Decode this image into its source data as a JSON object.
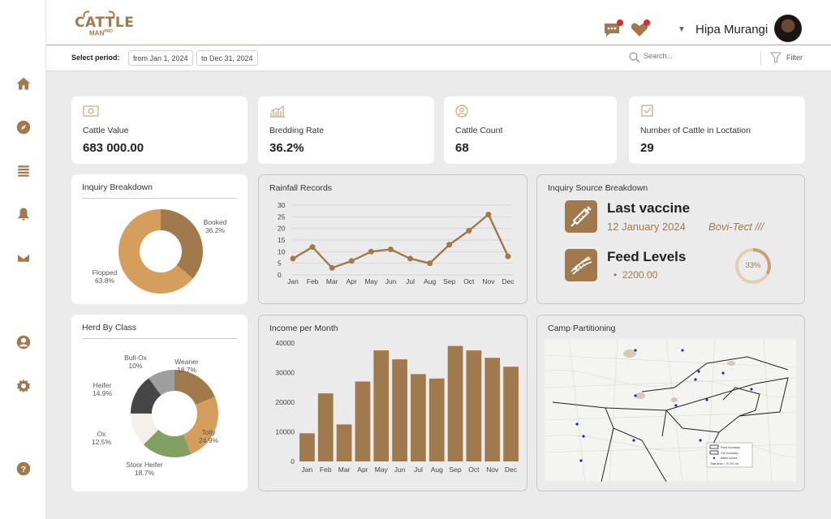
{
  "app": {
    "logo_text": "CATTLE",
    "logo_sub": "MAN",
    "logo_sup": "PRO"
  },
  "header": {
    "user_name": "Hipa Murangi",
    "icons": [
      "chat-icon",
      "heart-icon",
      "chevron-down-icon",
      "avatar"
    ]
  },
  "sidebar": {
    "items": [
      "home-icon",
      "compass-icon",
      "list-icon",
      "bell-icon",
      "mail-icon",
      "user-icon",
      "gear-icon",
      "help-icon"
    ]
  },
  "filterbar": {
    "period_label": "Select period:",
    "from": "from Jan 1, 2024",
    "to": "to Dec 31, 2024",
    "search_placeholder": "Search...",
    "filter_label": "Filter"
  },
  "stats": [
    {
      "icon": "money-icon",
      "label": "Cattle Value",
      "value": "683 000.00"
    },
    {
      "icon": "bar-chart-icon",
      "label": "Bredding Rate",
      "value": "36.2%"
    },
    {
      "icon": "user-circle-icon",
      "label": "Cattle Count",
      "value": "68"
    },
    {
      "icon": "checkbox-icon",
      "label": "Number of Cattle in Loctation",
      "value": "29"
    }
  ],
  "colors": {
    "brand": "#a07a4c",
    "brand_light": "#d59e5d",
    "accent_red": "#e0282e",
    "dark_slice": "#464646",
    "grey_slice": "#9e9e9e",
    "green_slice": "#82a062",
    "cream_slice": "#f4efe8"
  },
  "inquiry_breakdown": {
    "title": "Inquiry Breakdown",
    "chart_data": {
      "type": "pie",
      "slices": [
        {
          "name": "Booked",
          "value": 36.2,
          "label": "36.2%",
          "color": "#a07a4c"
        },
        {
          "name": "Flopped",
          "value": 63.8,
          "label": "63.8%",
          "color": "#d59e5d"
        }
      ]
    }
  },
  "rainfall": {
    "title": "Rainfall Records",
    "chart_data": {
      "type": "line",
      "categories": [
        "Jan",
        "Feb",
        "Mar",
        "Apr",
        "May",
        "Jun",
        "Jul",
        "Aug",
        "Sep",
        "Oct",
        "Nov",
        "Dec"
      ],
      "values": [
        7,
        12,
        3,
        6,
        10,
        11,
        7,
        5,
        13,
        19,
        26,
        8
      ],
      "yticks": [
        "0",
        "5",
        "10",
        "15",
        "20",
        "25",
        "30"
      ],
      "ylim": [
        0,
        30
      ],
      "grid": true
    }
  },
  "inquiry_source": {
    "title": "Inquiry Source Breakdown",
    "vaccine_icon": "syringe-icon",
    "vaccine_title": "Last vaccine",
    "vaccine_date": "12 January 2024",
    "vaccine_brand": "Bovi-Tect ///",
    "feed_icon": "feed-icon",
    "feed_title": "Feed Levels",
    "feed_amount": "2200.00",
    "feed_percent": 33,
    "feed_percent_label": "33%"
  },
  "herd": {
    "title": "Herd By Class",
    "chart_data": {
      "type": "pie",
      "slices": [
        {
          "name": "Weaner",
          "value": 18.7,
          "label": "18.7%",
          "color": "#a07a4c"
        },
        {
          "name": "Tolly",
          "value": 24.9,
          "label": "24.9%",
          "color": "#d59e5d"
        },
        {
          "name": "Stoor Heifer",
          "value": 18.7,
          "label": "18.7%",
          "color": "#82a062"
        },
        {
          "name": "Ox",
          "value": 12.5,
          "label": "12.5%",
          "color": "#f4efe8"
        },
        {
          "name": "Heifer",
          "value": 14.9,
          "label": "14.9%",
          "color": "#464646"
        },
        {
          "name": "Bull-Ox",
          "value": 10,
          "label": "10%",
          "color": "#9e9e9e"
        }
      ]
    }
  },
  "income": {
    "title": "Income per Month",
    "chart_data": {
      "type": "bar",
      "categories": [
        "Jan",
        "Feb",
        "Mar",
        "Apr",
        "May",
        "Jun",
        "Jul",
        "Aug",
        "Sep",
        "Oct",
        "Nov",
        "Dec"
      ],
      "values": [
        9500,
        23000,
        12500,
        27000,
        37500,
        34500,
        29500,
        28000,
        39000,
        37500,
        35000,
        32000
      ],
      "yticks": [
        "0",
        "10000",
        "20000",
        "30000",
        "40000"
      ],
      "ylim": [
        0,
        40000
      ],
      "grid": false
    }
  },
  "camp": {
    "title": "Camp Partitioning",
    "legend": [
      "Farm boundary",
      "Cell boundary",
      "Water source",
      "Total area = 10 291 ha"
    ]
  }
}
